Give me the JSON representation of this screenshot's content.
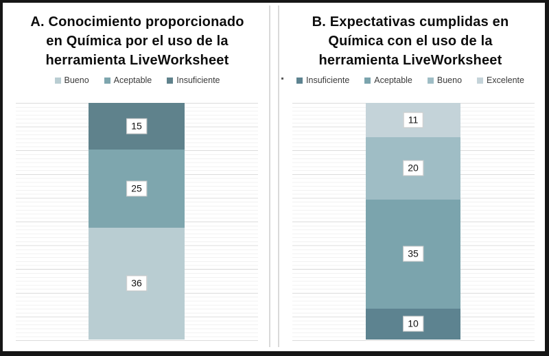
{
  "figure": {
    "border_color": "#161616",
    "background": "#ffffff",
    "divider_color": "#d9d9d9",
    "gridline_minor_color": "#f1f1f1",
    "gridline_major_color": "#dcdcdc"
  },
  "chart_data": [
    {
      "type": "bar",
      "stacked": true,
      "orientation": "vertical",
      "title": "A. Conocimiento proporcionado en Química por el uso de la herramienta LiveWorksheet",
      "title_lines": [
        "A. Conocimiento proporcionado",
        "en Química por el uso de la",
        "herramienta LiveWorksheet"
      ],
      "legend_position": "top",
      "grid": true,
      "categories": [
        ""
      ],
      "total": 76,
      "legend": [
        {
          "label": "Bueno",
          "color": "#b9cdd2"
        },
        {
          "label": "Aceptable",
          "color": "#7ea6ae"
        },
        {
          "label": "Insuficiente",
          "color": "#5f828c"
        }
      ],
      "segments_top_to_bottom": [
        {
          "name": "Insuficiente",
          "value": 15,
          "label": "15",
          "color": "#5f828c"
        },
        {
          "name": "Aceptable",
          "value": 25,
          "label": "25",
          "color": "#7ea6ae"
        },
        {
          "name": "Bueno",
          "value": 36,
          "label": "36",
          "color": "#b9cdd2"
        }
      ]
    },
    {
      "type": "bar",
      "stacked": true,
      "orientation": "vertical",
      "title": "B. Expectativas cumplidas en Química con el uso de la herramienta LiveWorksheet",
      "title_lines": [
        "B. Expectativas cumplidas en",
        "Química con el uso de la",
        "herramienta LiveWorksheet"
      ],
      "legend_position": "top",
      "grid": true,
      "categories": [
        ""
      ],
      "total": 76,
      "legend": [
        {
          "label": "Insuficiente",
          "color": "#5d8390"
        },
        {
          "label": "Aceptable",
          "color": "#7ba4ad"
        },
        {
          "label": "Bueno",
          "color": "#9fbdc5"
        },
        {
          "label": "Excelente",
          "color": "#c4d3d9"
        }
      ],
      "segments_top_to_bottom": [
        {
          "name": "Excelente",
          "value": 11,
          "label": "11",
          "color": "#c4d3d9"
        },
        {
          "name": "Bueno",
          "value": 20,
          "label": "20",
          "color": "#9fbdc5"
        },
        {
          "name": "Aceptable",
          "value": 35,
          "label": "35",
          "color": "#7ba4ad"
        },
        {
          "name": "Insuficiente",
          "value": 10,
          "label": "10",
          "color": "#5d8390"
        }
      ]
    }
  ]
}
